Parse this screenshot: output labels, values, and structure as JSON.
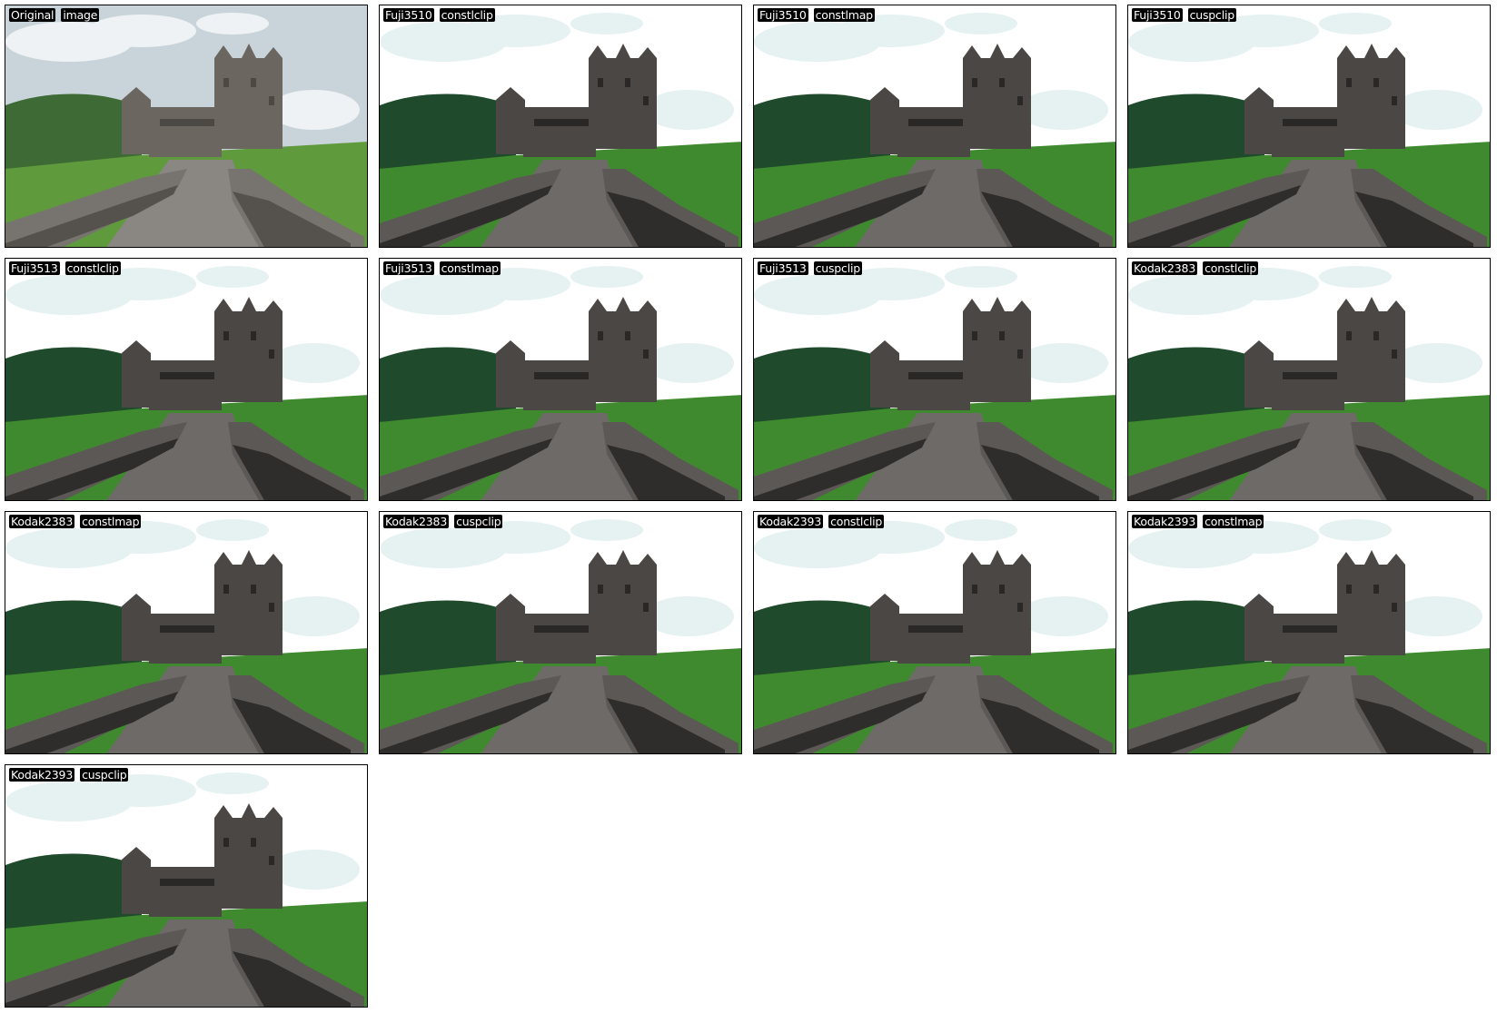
{
  "panels": [
    {
      "words": [
        "Original",
        "image"
      ],
      "variant": "original"
    },
    {
      "words": [
        "Fuji3510",
        "constlclip"
      ],
      "variant": "film"
    },
    {
      "words": [
        "Fuji3510",
        "constlmap"
      ],
      "variant": "film"
    },
    {
      "words": [
        "Fuji3510",
        "cuspclip"
      ],
      "variant": "film"
    },
    {
      "words": [
        "Fuji3513",
        "constlclip"
      ],
      "variant": "film"
    },
    {
      "words": [
        "Fuji3513",
        "constlmap"
      ],
      "variant": "film"
    },
    {
      "words": [
        "Fuji3513",
        "cuspclip"
      ],
      "variant": "film"
    },
    {
      "words": [
        "Kodak2383",
        "constlclip"
      ],
      "variant": "film"
    },
    {
      "words": [
        "Kodak2383",
        "constlmap"
      ],
      "variant": "film"
    },
    {
      "words": [
        "Kodak2383",
        "cuspclip"
      ],
      "variant": "film"
    },
    {
      "words": [
        "Kodak2393",
        "constlclip"
      ],
      "variant": "film"
    },
    {
      "words": [
        "Kodak2393",
        "constlmap"
      ],
      "variant": "film"
    },
    {
      "words": [
        "Kodak2393",
        "cuspclip"
      ],
      "variant": "film"
    }
  ],
  "colors": {
    "original": {
      "sky": "#c9d3da",
      "cloud": "#eef2f4",
      "hill": "#3d6a35",
      "grass": "#5f9a3c",
      "castle": "#6b6660",
      "castle_dark": "#4c4843",
      "road": "#8a8682",
      "wall": "#77736f",
      "wall_dark": "#55524e"
    },
    "film": {
      "sky": "#ffffff",
      "cloud": "#e6f1f2",
      "hill": "#1f4a2c",
      "grass": "#3f8a2e",
      "castle": "#4a4744",
      "castle_dark": "#2a2826",
      "road": "#6d6a68",
      "wall": "#5c5855",
      "wall_dark": "#2f2d2b"
    }
  }
}
